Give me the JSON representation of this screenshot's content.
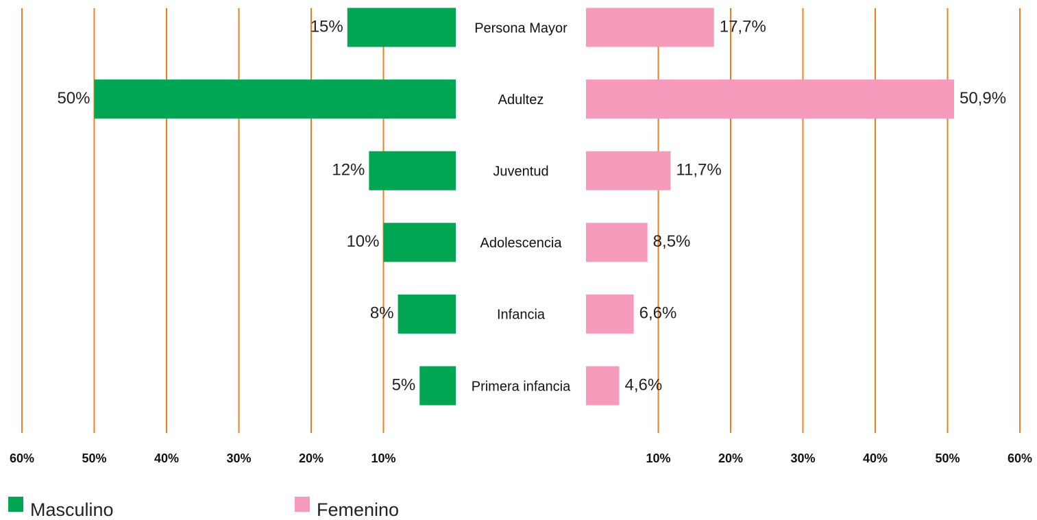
{
  "chart_data": {
    "type": "bar",
    "categories": [
      "Persona Mayor",
      "Adultez",
      "Juventud",
      "Adolescencia",
      "Infancia",
      "Primera infancia"
    ],
    "series": [
      {
        "name": "Masculino",
        "color": "#00a651",
        "values": [
          15,
          50,
          12,
          10,
          8,
          5
        ],
        "value_labels": [
          "15%",
          "50%",
          "12%",
          "10%",
          "8%",
          "5%"
        ]
      },
      {
        "name": "Femenino",
        "color": "#f79bbc",
        "values": [
          17.7,
          50.9,
          11.7,
          8.5,
          6.6,
          4.6
        ],
        "value_labels": [
          "17,7%",
          "50,9%",
          "11,7%",
          "8,5%",
          "6,6%",
          "4,6%"
        ]
      }
    ],
    "xlim": [
      0,
      60
    ],
    "xticks": [
      {
        "value": 10,
        "label": "10%"
      },
      {
        "value": 20,
        "label": "20%"
      },
      {
        "value": 30,
        "label": "30%"
      },
      {
        "value": 40,
        "label": "40%"
      },
      {
        "value": 50,
        "label": "50%"
      },
      {
        "value": 60,
        "label": "60%"
      }
    ],
    "grid": true,
    "grid_color": "#f07d1a"
  }
}
